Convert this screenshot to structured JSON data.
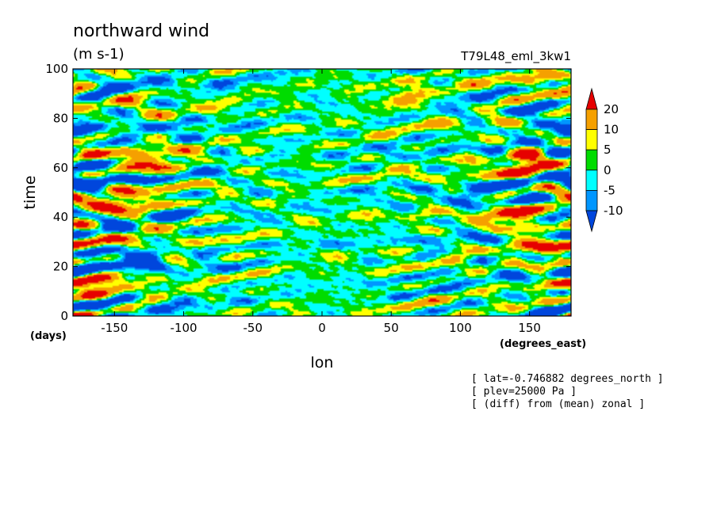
{
  "chart_data": {
    "type": "heatmap",
    "title": "northward wind",
    "units": "(m s-1)",
    "experiment": "T79L48_eml_3kw1",
    "xlabel": "lon",
    "ylabel": "time",
    "x_unit_label": "(degrees_east)",
    "y_unit_label": "(days)",
    "xlim": [
      -180,
      180
    ],
    "ylim": [
      0,
      100
    ],
    "x_ticks": [
      "-150",
      "-100",
      "-50",
      "0",
      "50",
      "100",
      "150"
    ],
    "x_tick_values": [
      -150,
      -100,
      -50,
      0,
      50,
      100,
      150
    ],
    "y_ticks": [
      "0",
      "20",
      "40",
      "60",
      "80",
      "100"
    ],
    "y_tick_values": [
      0,
      20,
      40,
      60,
      80,
      100
    ],
    "colorbar": {
      "labels": [
        "20",
        "10",
        "5",
        "0",
        "-5",
        "-10"
      ],
      "levels": [
        20,
        10,
        5,
        0,
        -5,
        -10
      ],
      "colors": [
        "#e60000",
        "#f5a000",
        "#ffff00",
        "#00dc00",
        "#00ffff",
        "#0096ff",
        "#0046dc"
      ]
    },
    "annotations": [
      "[ lat=-0.746882 degrees_north ]",
      "[ plev=25000 Pa ]",
      "[ (diff) from (mean) zonal ]"
    ],
    "features": [
      {
        "lon": -150,
        "day": 44,
        "value": 22
      },
      {
        "lon": -125,
        "day": 61,
        "value": 21
      },
      {
        "lon": 145,
        "day": 61,
        "value": 23
      },
      {
        "lon": 140,
        "day": 40,
        "value": 21
      },
      {
        "lon": 160,
        "day": 28,
        "value": 16
      },
      {
        "lon": -165,
        "day": 12,
        "value": 15
      },
      {
        "lon": 60,
        "day": 87,
        "value": 12
      },
      {
        "lon": 165,
        "day": 93,
        "value": 13
      },
      {
        "lon": -170,
        "day": 55,
        "value": -14
      },
      {
        "lon": 170,
        "day": 80,
        "value": -12
      },
      {
        "lon": -140,
        "day": 22,
        "value": -12
      },
      {
        "lon": 125,
        "day": 50,
        "value": -11
      }
    ]
  }
}
